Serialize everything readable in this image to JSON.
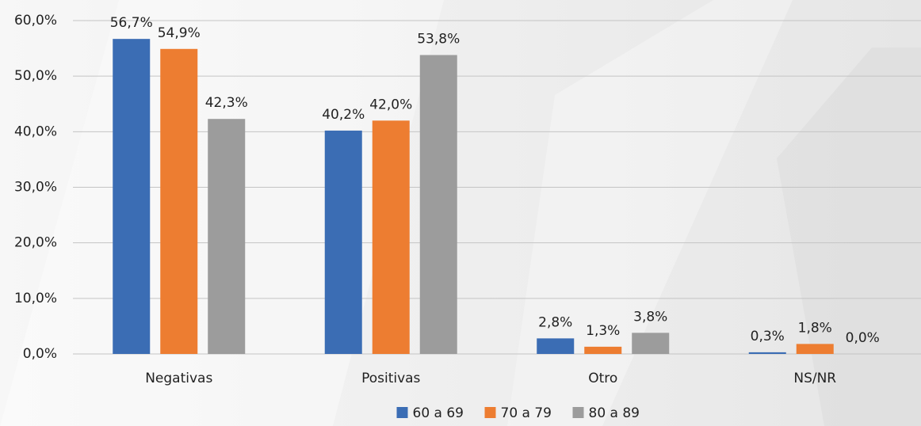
{
  "chart_data": {
    "type": "bar",
    "categories": [
      "Negativas",
      "Positivas",
      "Otro",
      "NS/NR"
    ],
    "series": [
      {
        "name": "60 a 69",
        "color": "#3b6db4",
        "values": [
          56.7,
          40.2,
          2.8,
          0.3
        ],
        "value_labels": [
          "56,7%",
          "40,2%",
          "2,8%",
          "0,3%"
        ]
      },
      {
        "name": "70 a 79",
        "color": "#ed7d31",
        "values": [
          54.9,
          42.0,
          1.3,
          1.8
        ],
        "value_labels": [
          "54,9%",
          "42,0%",
          "1,3%",
          "1,8%"
        ]
      },
      {
        "name": "80 a 89",
        "color": "#9c9c9c",
        "values": [
          42.3,
          53.8,
          3.8,
          0.0
        ],
        "value_labels": [
          "42,3%",
          "53,8%",
          "3,8%",
          "0,0%"
        ]
      }
    ],
    "ylim": [
      0,
      60
    ],
    "yticks": [
      {
        "value": 0,
        "label": "0,0%"
      },
      {
        "value": 10,
        "label": "10,0%"
      },
      {
        "value": 20,
        "label": "20,0%"
      },
      {
        "value": 30,
        "label": "30,0%"
      },
      {
        "value": 40,
        "label": "40,0%"
      },
      {
        "value": 50,
        "label": "50,0%"
      },
      {
        "value": 60,
        "label": "60,0%"
      }
    ],
    "grid": true,
    "legend": "bottom"
  }
}
